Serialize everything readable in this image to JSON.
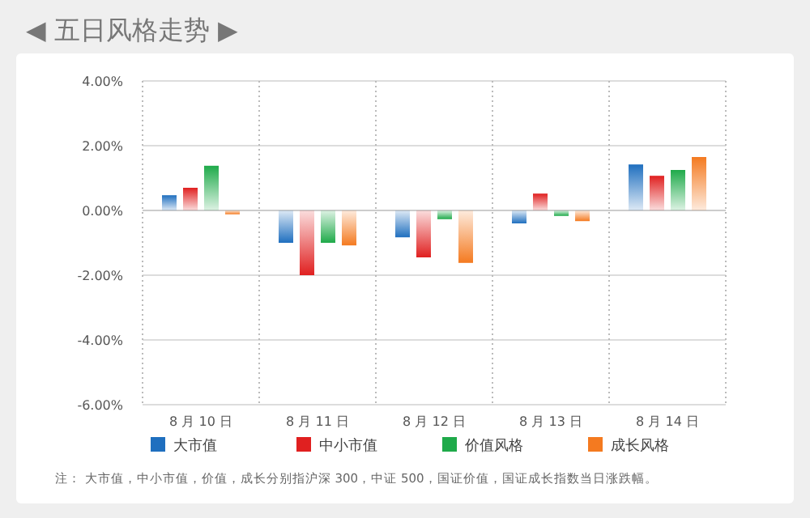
{
  "chart_data": {
    "type": "bar",
    "title": "◀ 五日风格走势 ▶",
    "categories": [
      "8 月 10 日",
      "8 月 11 日",
      "8 月 12 日",
      "8 月 13 日",
      "8 月 14 日"
    ],
    "series": [
      {
        "name": "大市值",
        "color": "#1f6fbf",
        "values": [
          0.47,
          -1.0,
          -0.83,
          -0.4,
          1.42
        ]
      },
      {
        "name": "中小市值",
        "color": "#e02020",
        "values": [
          0.7,
          -2.0,
          -1.45,
          0.52,
          1.07
        ]
      },
      {
        "name": "价值风格",
        "color": "#1faa4a",
        "values": [
          1.38,
          -1.0,
          -0.27,
          -0.17,
          1.25
        ]
      },
      {
        "name": "成长风格",
        "color": "#f47a20",
        "values": [
          -0.12,
          -1.08,
          -1.62,
          -0.33,
          1.65
        ]
      }
    ],
    "ylim": [
      -6,
      4
    ],
    "yticks": [
      {
        "value": 4,
        "label": "4.00%"
      },
      {
        "value": 2,
        "label": "2.00%"
      },
      {
        "value": 0,
        "label": "0.00%"
      },
      {
        "value": -2,
        "label": "-2.00%"
      },
      {
        "value": -4,
        "label": "-4.00%"
      },
      {
        "value": -6,
        "label": "-6.00%"
      }
    ],
    "grid": true,
    "legend": "bottom",
    "annotations": [
      "注： 大市值，中小市值，价值，成长分别指沪深 300，中证 500，国证价值，国证成长指数当日涨跌幅。"
    ]
  }
}
